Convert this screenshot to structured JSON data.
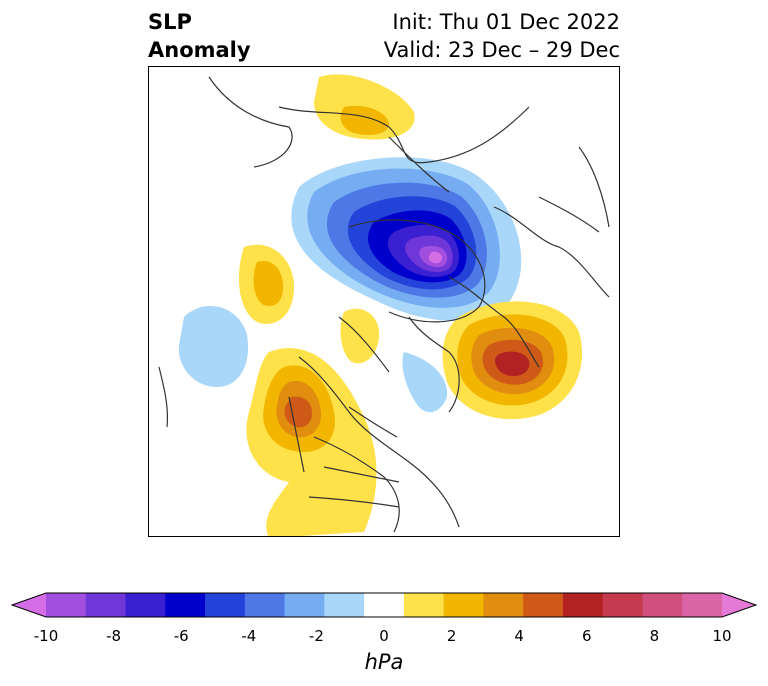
{
  "header": {
    "title_line1": "SLP",
    "title_line2": "Anomaly",
    "init_text": "Init: Thu 01 Dec 2022",
    "valid_text": "Valid: 23 Dec – 29 Dec"
  },
  "colorbar": {
    "units": "hPa",
    "tick_labels": [
      "-10",
      "-8",
      "-6",
      "-4",
      "-2",
      "0",
      "2",
      "4",
      "6",
      "8",
      "10"
    ],
    "colors": [
      "#d56ee6",
      "#a24fe0",
      "#6f36d8",
      "#3a20d0",
      "#0000cc",
      "#2443d8",
      "#4d78e6",
      "#76adf2",
      "#a8d7fa",
      "#ffffff",
      "#ffe14a",
      "#f2b600",
      "#e08d10",
      "#cf5a18",
      "#b22222",
      "#c53a4f",
      "#d14f7c",
      "#d964a6",
      "#e57ad6"
    ]
  },
  "map": {
    "field": "SLP Anomaly",
    "features": [
      "negative-anomaly-siberia",
      "positive-anomaly-north-pacific",
      "positive-anomaly-north-atlantic",
      "positive-anomaly-gulf-of-alaska",
      "negative-anomaly-north-pacific-west"
    ]
  }
}
